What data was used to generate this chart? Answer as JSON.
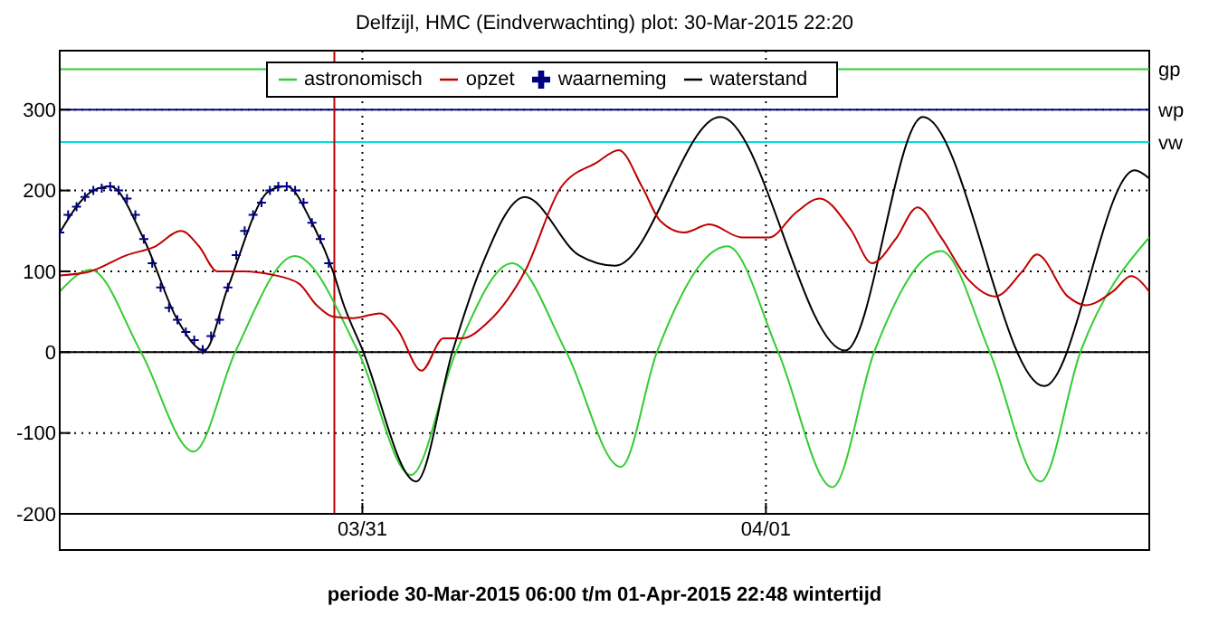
{
  "chart_data": {
    "type": "line",
    "title": "Delfzijl, HMC (Eindverwachting) plot: 30-Mar-2015 22:20",
    "xlabel": "periode 30-Mar-2015 06:00 t/m 01-Apr-2015 22:48 wintertijd",
    "xlim": [
      "2015-03-30T06:00",
      "2015-04-01T22:48"
    ],
    "xticks": [
      {
        "value": "2015-03-31",
        "label": "03/31"
      },
      {
        "value": "2015-04-01",
        "label": "04/01"
      }
    ],
    "ylim": [
      -200,
      373
    ],
    "yticks": [
      -200,
      -100,
      0,
      100,
      200,
      300
    ],
    "grid": true,
    "legend": "top",
    "line_style": "solid",
    "marker": "none",
    "series": [
      {
        "name": "astronomisch",
        "color": "#33cc33",
        "x": [
          "2015-03-30T06:00",
          "2015-03-30T07:50",
          "2015-03-30T10:50",
          "2015-03-30T13:58",
          "2015-03-30T16:26",
          "2015-03-30T19:59",
          "2015-03-30T23:46",
          "2015-03-31T02:53",
          "2015-03-31T05:34",
          "2015-03-31T08:54",
          "2015-03-31T12:08",
          "2015-03-31T15:22",
          "2015-03-31T17:31",
          "2015-03-31T21:43",
          "2015-04-01T00:44",
          "2015-04-01T03:57",
          "2015-04-01T06:26",
          "2015-04-01T10:25",
          "2015-04-01T13:19",
          "2015-04-01T16:20",
          "2015-04-01T18:42",
          "2015-04-01T22:48"
        ],
        "values": [
          75,
          102,
          0,
          -123,
          0,
          119,
          0,
          -152,
          0,
          110,
          0,
          -142,
          0,
          131,
          0,
          -167,
          0,
          125,
          0,
          -160,
          0,
          142
        ]
      },
      {
        "name": "waterstand",
        "color": "#000000",
        "x": [
          "2015-03-30T06:00",
          "2015-03-30T08:00",
          "2015-03-30T09:00",
          "2015-03-30T11:00",
          "2015-03-30T13:00",
          "2015-03-30T14:36",
          "2015-03-30T16:00",
          "2015-03-30T18:30",
          "2015-03-30T19:30",
          "2015-03-30T21:00",
          "2015-03-30T22:15",
          "2015-03-30T22:54",
          "2015-03-30T23:58",
          "2015-03-31T03:12",
          "2015-03-31T05:21",
          "2015-03-31T06:58",
          "2015-03-31T09:40",
          "2015-03-31T12:53",
          "2015-03-31T15:02",
          "2015-03-31T21:17",
          "2015-04-01T04:43",
          "2015-04-01T09:20",
          "2015-04-01T16:33",
          "2015-04-01T21:56",
          "2015-04-01T22:48"
        ],
        "values": [
          148,
          200,
          205,
          140,
          40,
          2,
          80,
          200,
          205,
          160,
          100,
          58,
          5,
          -160,
          0,
          100,
          192,
          120,
          107,
          291,
          2,
          291,
          -42,
          225,
          215
        ]
      },
      {
        "name": "waarneming",
        "type": "scatter",
        "marker": "cross",
        "color": "#000080",
        "x": [
          "2015-03-30T06:00",
          "2015-03-30T06:30",
          "2015-03-30T07:00",
          "2015-03-30T07:30",
          "2015-03-30T08:00",
          "2015-03-30T08:30",
          "2015-03-30T09:00",
          "2015-03-30T09:30",
          "2015-03-30T10:00",
          "2015-03-30T10:30",
          "2015-03-30T11:00",
          "2015-03-30T11:30",
          "2015-03-30T12:00",
          "2015-03-30T12:30",
          "2015-03-30T13:00",
          "2015-03-30T13:30",
          "2015-03-30T14:00",
          "2015-03-30T14:30",
          "2015-03-30T15:00",
          "2015-03-30T15:30",
          "2015-03-30T16:00",
          "2015-03-30T16:30",
          "2015-03-30T17:00",
          "2015-03-30T17:30",
          "2015-03-30T18:00",
          "2015-03-30T18:30",
          "2015-03-30T19:00",
          "2015-03-30T19:30",
          "2015-03-30T20:00",
          "2015-03-30T20:30",
          "2015-03-30T21:00",
          "2015-03-30T21:30",
          "2015-03-30T22:00"
        ],
        "values": [
          148,
          170,
          180,
          192,
          200,
          203,
          205,
          200,
          190,
          170,
          140,
          110,
          80,
          55,
          40,
          25,
          15,
          3,
          20,
          40,
          80,
          120,
          150,
          170,
          185,
          200,
          205,
          205,
          200,
          185,
          160,
          140,
          110
        ]
      },
      {
        "name": "opzet",
        "color": "#c00000",
        "x": [
          "2015-03-30T06:00",
          "2015-03-30T07:50",
          "2015-03-30T09:59",
          "2015-03-30T11:36",
          "2015-03-30T13:13",
          "2015-03-30T14:17",
          "2015-03-30T15:22",
          "2015-03-30T16:59",
          "2015-03-30T18:35",
          "2015-03-30T20:13",
          "2015-03-30T21:17",
          "2015-03-30T22:15",
          "2015-03-30T23:26",
          "2015-03-31T01:03",
          "2015-03-31T02:07",
          "2015-03-31T03:31",
          "2015-03-31T04:49",
          "2015-03-31T05:53",
          "2015-03-31T07:31",
          "2015-03-31T09:40",
          "2015-03-31T11:49",
          "2015-03-31T13:58",
          "2015-03-31T15:15",
          "2015-03-31T16:39",
          "2015-03-31T17:44",
          "2015-03-31T19:08",
          "2015-03-31T20:38",
          "2015-03-31T22:34",
          "2015-04-01T00:11",
          "2015-04-01T01:48",
          "2015-04-01T03:12",
          "2015-04-01T05:02",
          "2015-04-01T06:19",
          "2015-04-01T07:43",
          "2015-04-01T09:01",
          "2015-04-01T10:25",
          "2015-04-01T12:02",
          "2015-04-01T13:38",
          "2015-04-01T15:15",
          "2015-04-01T16:07",
          "2015-04-01T17:57",
          "2015-04-01T19:01",
          "2015-04-01T20:38",
          "2015-04-01T21:43",
          "2015-04-01T22:48"
        ],
        "values": [
          95,
          100,
          120,
          130,
          150,
          131,
          100,
          100,
          96,
          85,
          58,
          44,
          42,
          48,
          27,
          -23,
          17,
          17,
          38,
          100,
          204,
          235,
          250,
          204,
          162,
          148,
          158,
          142,
          142,
          173,
          190,
          152,
          110,
          140,
          179,
          142,
          90,
          69,
          100,
          121,
          69,
          58,
          75,
          94,
          75
        ]
      }
    ],
    "ref_lines": [
      {
        "axis": "y",
        "value": 350,
        "label": "gp",
        "color": "#33cc33"
      },
      {
        "axis": "y",
        "value": 300,
        "label": "wp",
        "color": "#000080"
      },
      {
        "axis": "y",
        "value": 260,
        "label": "vw",
        "color": "#00dddd"
      },
      {
        "axis": "y",
        "value": 0,
        "color": "#000000"
      },
      {
        "axis": "x",
        "value": "2015-03-30T22:20",
        "color": "#c00000"
      }
    ]
  }
}
